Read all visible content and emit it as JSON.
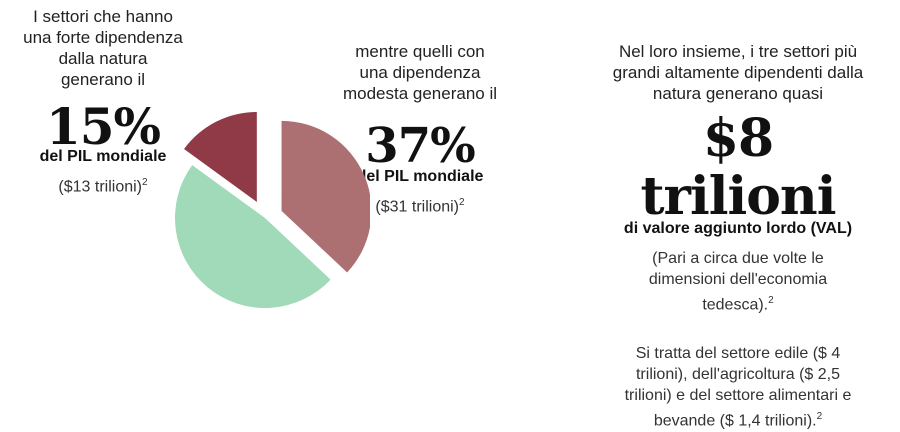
{
  "left": {
    "intro": [
      "I settori che hanno",
      "una forte dipendenza",
      "dalla natura",
      "generano il"
    ],
    "big": "15%",
    "sub": "del PIL mondiale",
    "note": "($13 trilioni)",
    "note_sup": "2"
  },
  "middle": {
    "intro": [
      "mentre quelli con",
      "una dipendenza",
      "modesta generano il"
    ],
    "big": "37%",
    "sub": "del PIL mondiale",
    "note": "($31 trilioni)",
    "note_sup": "2"
  },
  "right": {
    "intro": [
      "Nel loro insieme, i tre settori più",
      "grandi altamente dipendenti dalla",
      "natura generano quasi"
    ],
    "big": "$8 trilioni",
    "sub": "di valore aggiunto lordo (VAL)",
    "note": [
      "(Pari a circa due volte le",
      "dimensioni dell'economia",
      "tedesca)."
    ],
    "note_sup": "2",
    "note2": [
      "Si tratta del settore edile ($ 4",
      "trilioni), dell'agricoltura ($ 2,5",
      "trilioni) e del settore alimentari e",
      "bevande ($ 1,4 trilioni)."
    ],
    "note2_sup": "2"
  },
  "chart_data": {
    "type": "pie",
    "values": [
      15,
      37,
      48
    ],
    "colors": [
      "#8f3a46",
      "#ad7072",
      "#a0dab8"
    ],
    "exploded": [
      true,
      true,
      false
    ]
  }
}
